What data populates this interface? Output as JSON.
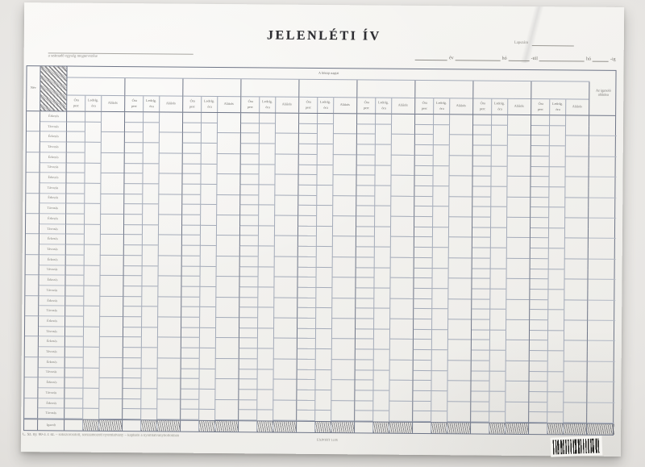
{
  "header": {
    "title": "JELENLÉTI ÍV",
    "unit_caption": "a számadó egység megnevezése",
    "sheet_no_label": "Lapszám",
    "date_tokens": {
      "ev": "év",
      "ho1": "hó",
      "tol": "-tól",
      "ho2": "hó",
      "ig": "-ig"
    }
  },
  "table": {
    "name_header": "Név",
    "days_header": "A hónap napjai",
    "right_header": "Az igazoló aláírása",
    "group_count": 9,
    "subheaders": [
      {
        "l1": "Óra",
        "l2": "perc"
      },
      {
        "l1": "Ledolg.",
        "l2": "óra"
      },
      {
        "l1": "Aláírás",
        "l2": ""
      }
    ],
    "pair_labels": [
      "Érkezés",
      "Távozás"
    ],
    "person_count": 15,
    "total_label": "Igazolt"
  },
  "footer": {
    "imprint": "C. Sz. ny. 60-3. r. sz.",
    "imprint_tail": "– sokszorosított, sorszámozott nyomtatvány – kapható a nyomtatványboltokban",
    "export_code": "EXPORT 14 B"
  },
  "colors": {
    "paper": "#f4f2ef",
    "form_line": "#6e7587",
    "background": "#e2e0dd"
  }
}
